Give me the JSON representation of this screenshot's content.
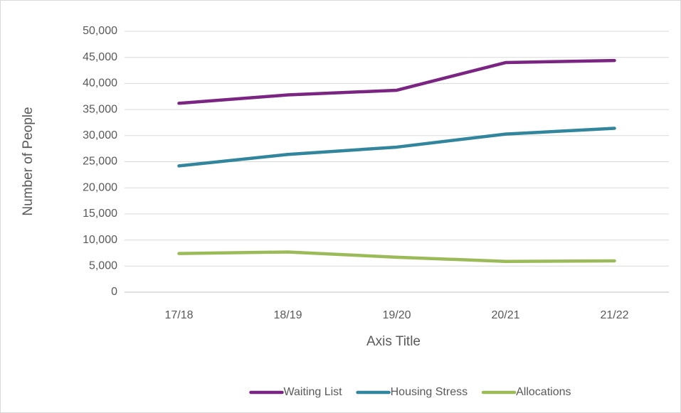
{
  "chart_data": {
    "type": "line",
    "y_axis_title": "Number of People",
    "x_axis_title": "Axis Title",
    "categories": [
      "17/18",
      "18/19",
      "19/20",
      "20/21",
      "21/22"
    ],
    "series": [
      {
        "name": "Waiting List",
        "color": "#7b2583",
        "values": [
          36200,
          37800,
          38700,
          44000,
          44400
        ]
      },
      {
        "name": "Housing Stress",
        "color": "#31859c",
        "values": [
          24200,
          26400,
          27800,
          30300,
          31400
        ]
      },
      {
        "name": "Allocations",
        "color": "#9bbb59",
        "values": [
          7400,
          7700,
          6700,
          5900,
          6000
        ]
      }
    ],
    "ylim": [
      0,
      50000
    ],
    "yticks": [
      0,
      {
        "value": 5000,
        "label": "5,000"
      },
      {
        "value": 10000,
        "label": "10,000"
      },
      {
        "value": 15000,
        "label": "15,000"
      },
      {
        "value": 20000,
        "label": "20,000"
      },
      {
        "value": 25000,
        "label": "25,000"
      },
      {
        "value": 30000,
        "label": "30,000"
      },
      {
        "value": 35000,
        "label": "35,000"
      },
      {
        "value": 40000,
        "label": "40,000"
      },
      {
        "value": 45000,
        "label": "45,000"
      },
      {
        "value": 50000,
        "label": "50,000"
      }
    ],
    "grid": true,
    "legend": "bottom"
  }
}
